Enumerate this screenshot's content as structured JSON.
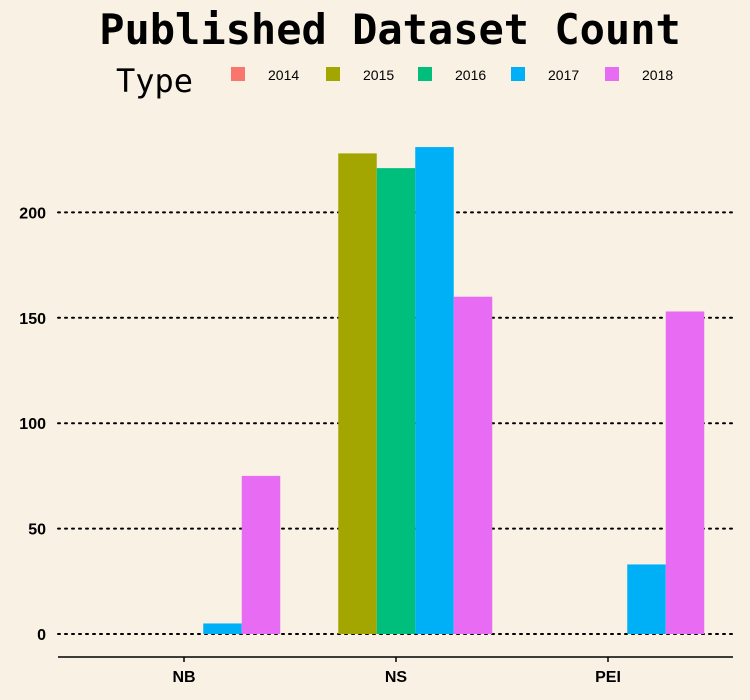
{
  "chart_data": {
    "type": "bar",
    "title": "Published Dataset Count",
    "xlabel": "",
    "ylabel": "",
    "legend_title": "Type",
    "legend_position": "top",
    "grid": "horizontal-dotted",
    "categories": [
      "NB",
      "NS",
      "PEI"
    ],
    "ylim": [
      0,
      235
    ],
    "yticks": [
      0,
      50,
      100,
      150,
      200
    ],
    "series": [
      {
        "name": "2014",
        "color": "#F8766D",
        "values": [
          0,
          0,
          0
        ]
      },
      {
        "name": "2015",
        "color": "#A3A500",
        "values": [
          0,
          228,
          0
        ]
      },
      {
        "name": "2016",
        "color": "#00BF7D",
        "values": [
          0,
          221,
          0
        ]
      },
      {
        "name": "2017",
        "color": "#00B0F6",
        "values": [
          5,
          231,
          33
        ]
      },
      {
        "name": "2018",
        "color": "#E76BF3",
        "values": [
          75,
          160,
          153
        ]
      }
    ]
  }
}
